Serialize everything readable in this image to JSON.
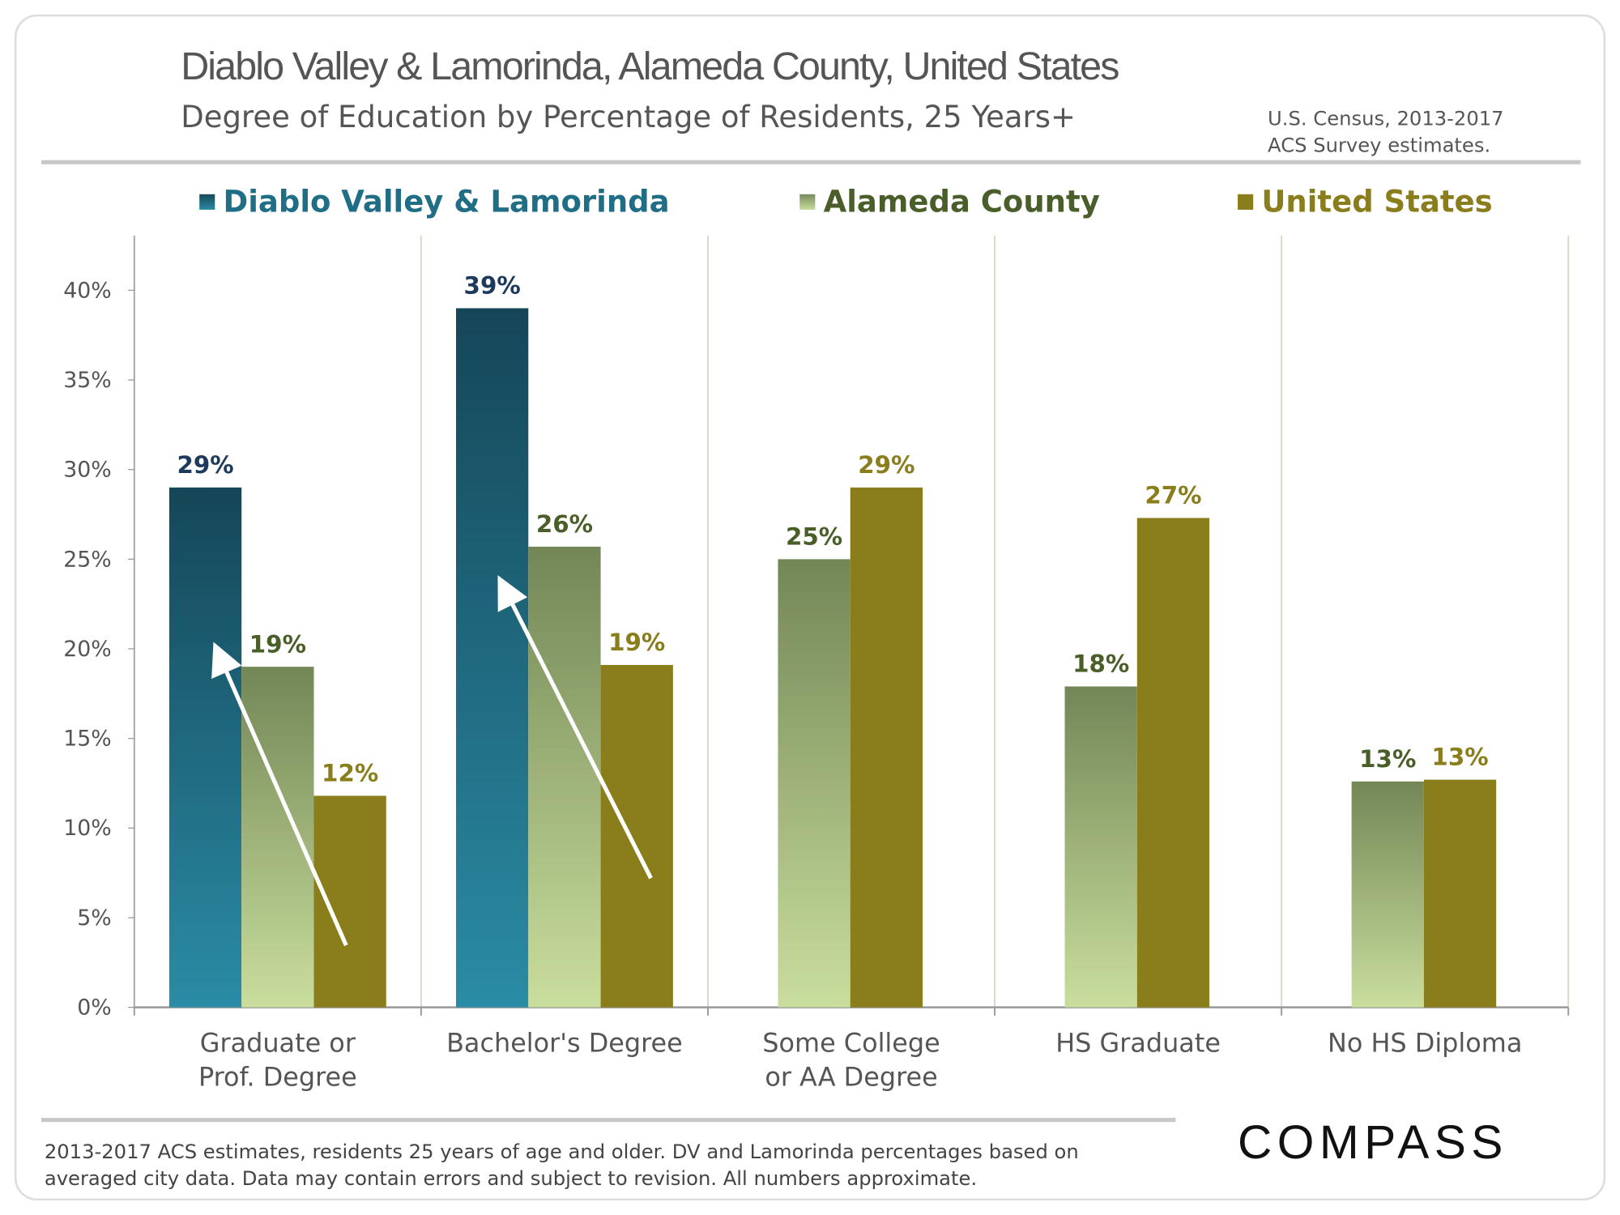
{
  "header": {
    "title": "Diablo Valley & Lamorinda, Alameda County, United States",
    "subtitle": "Degree of Education by Percentage of Residents, 25 Years+",
    "source_line1": "U.S. Census, 2013-2017",
    "source_line2": "ACS Survey estimates."
  },
  "footer": {
    "line1": "2013-2017 ACS estimates, residents 25 years of age and older. DV and Lamorinda percentages based on",
    "line2": "averaged city data. Data may contain errors and subject to revision. All numbers approximate.",
    "logo": "COMPASS"
  },
  "colors": {
    "dv": "#1f6e85",
    "alameda": "#8fa46c",
    "us": "#8a7d1c",
    "dv_label": "#1d3a5c",
    "alameda_label": "#4a5e2a",
    "us_label": "#8a7d1c"
  },
  "chart_data": {
    "type": "bar",
    "categories": [
      "Graduate or Prof. Degree",
      "Bachelor's Degree",
      "Some College or AA Degree",
      "HS Graduate",
      "No HS Diploma"
    ],
    "category_lines": [
      [
        "Graduate or",
        "Prof. Degree"
      ],
      [
        "Bachelor's Degree"
      ],
      [
        "Some College",
        "or AA Degree"
      ],
      [
        "HS Graduate"
      ],
      [
        "No HS Diploma"
      ]
    ],
    "series": [
      {
        "name": "Diablo Valley & Lamorinda",
        "values": [
          29,
          39,
          null,
          null,
          null
        ],
        "labels": [
          "29%",
          "39%",
          null,
          null,
          null
        ]
      },
      {
        "name": "Alameda County",
        "values": [
          19,
          25.7,
          25,
          17.9,
          12.6
        ],
        "labels": [
          "19%",
          "26%",
          "25%",
          "18%",
          "13%"
        ]
      },
      {
        "name": "United States",
        "values": [
          11.8,
          19.1,
          29,
          27.3,
          12.7
        ],
        "labels": [
          "12%",
          "19%",
          "29%",
          "27%",
          "13%"
        ]
      }
    ],
    "ylim": [
      0,
      40
    ],
    "yticks": [
      "0%",
      "5%",
      "10%",
      "15%",
      "20%",
      "25%",
      "30%",
      "35%",
      "40%"
    ],
    "legend_position": "top",
    "annotations": "white arrows from US bar to DV bar in first two categories"
  }
}
